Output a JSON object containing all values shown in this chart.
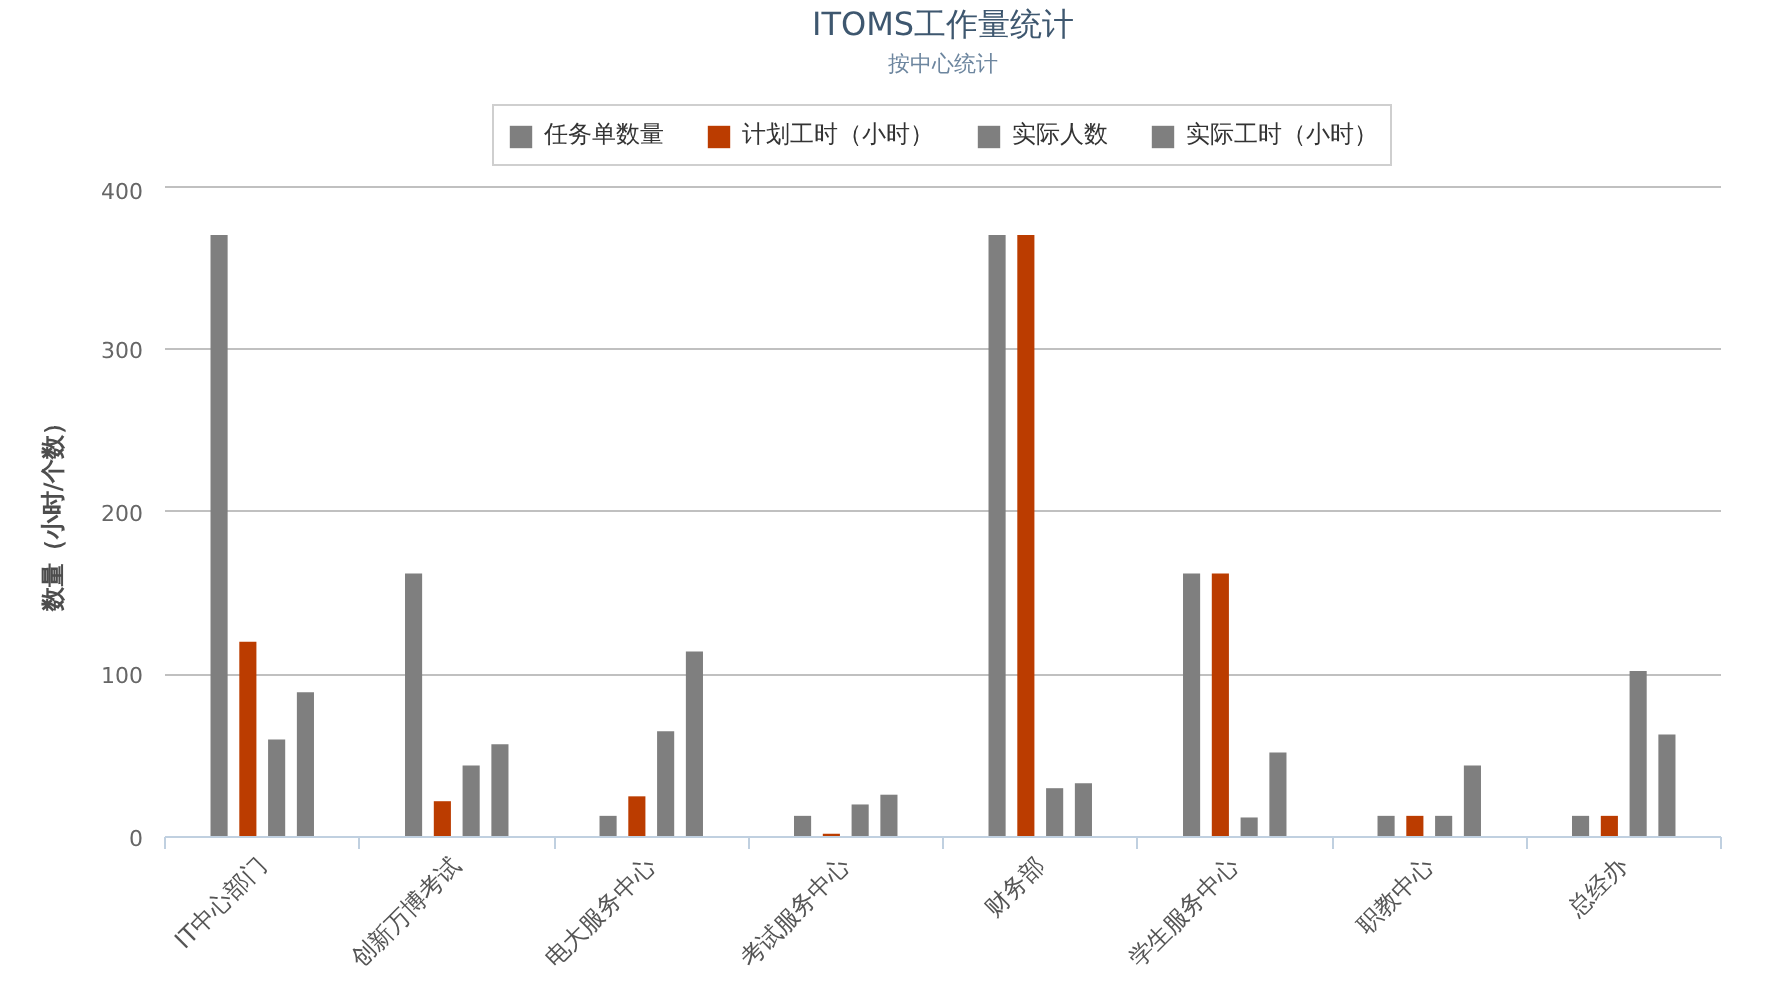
{
  "chart_data": {
    "type": "bar",
    "title": "ITOMS工作量统计",
    "subtitle": "按中心统计",
    "ylabel": "数量（小时/个数）",
    "categories": [
      "IT中心部门",
      "创新万博考试",
      "电大服务中心",
      "考试服务中心",
      "财务部",
      "学生服务中心",
      "职教中心",
      "总经办"
    ],
    "series": [
      {
        "name": "任务单数量",
        "color": "#7f7f7f",
        "values": [
          370,
          162,
          13,
          13,
          370,
          162,
          13,
          13
        ]
      },
      {
        "name": "计划工时（小时）",
        "color": "#bb3c00",
        "values": [
          120,
          22,
          25,
          2,
          370,
          162,
          13,
          13
        ]
      },
      {
        "name": "实际人数",
        "color": "#7f7f7f",
        "values": [
          60,
          44,
          65,
          20,
          30,
          12,
          13,
          102
        ]
      },
      {
        "name": "实际工时（小时）",
        "color": "#7f7f7f",
        "values": [
          89,
          57,
          114,
          26,
          33,
          52,
          44,
          63
        ]
      }
    ],
    "ylim": [
      0,
      400
    ],
    "yticks": [
      0,
      100,
      200,
      300,
      400
    ],
    "grid": "y",
    "legend": "top"
  }
}
